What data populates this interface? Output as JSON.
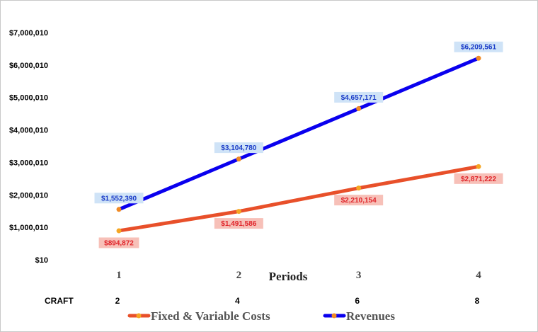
{
  "chart_data": {
    "type": "line",
    "categories": [
      "1",
      "2",
      "3",
      "4"
    ],
    "xlabel": "Periods",
    "y_ticks": [
      "$10",
      "$1,000,010",
      "$2,000,010",
      "$3,000,010",
      "$4,000,010",
      "$5,000,010",
      "$6,000,010",
      "$7,000,010"
    ],
    "ylim": [
      10,
      7000010
    ],
    "extra_row": {
      "label": "CRAFT",
      "values": [
        "2",
        "4",
        "6",
        "8"
      ]
    },
    "series": [
      {
        "name": "Fixed & Variable Costs",
        "values": [
          894872,
          1491586,
          2210154,
          2871222
        ],
        "labels": [
          "$894,872",
          "$1,491,586",
          "$2,210,154",
          "$2,871,222"
        ],
        "color": "#e8502a",
        "marker_color": "#f5a623",
        "label_bg": "#f7c0b8",
        "label_color": "#e0242a"
      },
      {
        "name": "Revenues",
        "values": [
          1552390,
          3104780,
          4657171,
          6209561
        ],
        "labels": [
          "$1,552,390",
          "$3,104,780",
          "$4,657,171",
          "$6,209,561"
        ],
        "color": "#0a00ee",
        "marker_color": "#f08a24",
        "label_bg": "#cfe3f7",
        "label_color": "#1a3cc8"
      }
    ],
    "grid": false,
    "legend": "bottom"
  }
}
